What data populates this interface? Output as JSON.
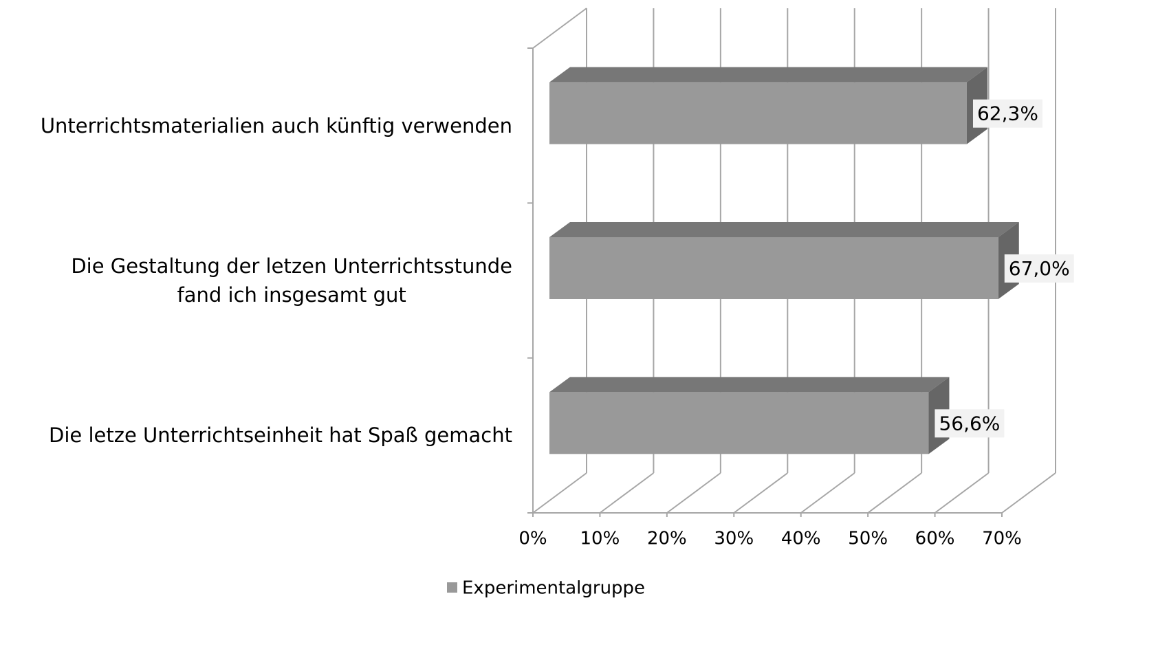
{
  "chart_data": {
    "type": "bar3d_horizontal",
    "categories": [
      "Unterrichtsmaterialien auch künftig verwenden",
      "Die Gestaltung der letzen Unterrichtsstunde\nfand ich insgesamt gut",
      "Die letze Unterrichtseinheit hat Spaß gemacht"
    ],
    "series": [
      {
        "name": "Experimentalgruppe",
        "color": "#999999",
        "values": [
          62.3,
          67.0,
          56.6
        ],
        "value_labels": [
          "62,3%",
          "67,0%",
          "56,6%"
        ]
      }
    ],
    "xlim": [
      0,
      70
    ],
    "xticks": [
      {
        "value": 0,
        "label": "0%"
      },
      {
        "value": 10,
        "label": "10%"
      },
      {
        "value": 20,
        "label": "20%"
      },
      {
        "value": 30,
        "label": "30%"
      },
      {
        "value": 40,
        "label": "40%"
      },
      {
        "value": 50,
        "label": "50%"
      },
      {
        "value": 60,
        "label": "60%"
      },
      {
        "value": 70,
        "label": "70%"
      }
    ],
    "grid": true,
    "legend": "bottom"
  }
}
